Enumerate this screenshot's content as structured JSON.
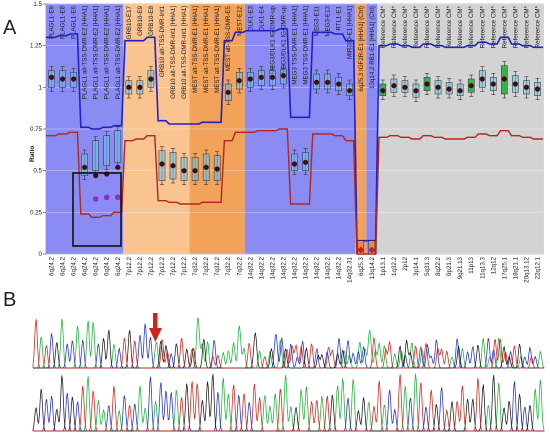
{
  "panel_a_label": "A",
  "panel_b_label": "B",
  "chart_data": {
    "type": "scatter",
    "ylabel": "Ratio",
    "ylim": [
      0,
      1.5
    ],
    "yticks": [
      0,
      0.25,
      0.5,
      0.75,
      1,
      1.25,
      1.5
    ],
    "ytick_labels": [
      "0",
      "0.25",
      "0.5",
      "0.75",
      "1",
      "1.25",
      "1.5"
    ],
    "grid": true,
    "region_colors": {
      "blue": "#8b8cf3",
      "peach": "#f9c490",
      "orange": "#f3a259",
      "gray": "#d3d3d3",
      "green_box": "#2fb24c",
      "box_cyan": "#6ec5ec",
      "upper_line": "#1f22c4",
      "lower_line": "#b3261e",
      "point": "#3d0f0f",
      "loss_marker": "#c8201a",
      "highlight_point": "#8a2fc8"
    },
    "regions": [
      {
        "color": "blue",
        "from": 0,
        "to": 6
      },
      {
        "color": "peach",
        "from": 7,
        "to": 12
      },
      {
        "color": "orange",
        "from": 13,
        "to": 17
      },
      {
        "color": "blue",
        "from": 18,
        "to": 27
      },
      {
        "color": "orange",
        "from": 28,
        "to": 28
      },
      {
        "color": "blue",
        "from": 29,
        "to": 29
      },
      {
        "color": "gray",
        "from": 30,
        "to": 44
      }
    ],
    "probes": [
      "PLAGL1-E9",
      "PLAGL1-E8",
      "PLAGL1-E6",
      "PLAGL1 alt-TSS-DMR-E2 [HHA1]",
      "PLAGL1 alt-TSS-DMR-E2 [HHA1]",
      "PLAGL1 alt-TSS-DMR-E2 [HHA1]",
      "PLAGL1 alt-TSS-DMR-E2 [HHA1]",
      "GRB10-E17",
      "GRB10-E9",
      "GRB10-E8",
      "GRB10 alt-TSS-DMR-Int1",
      "GRB10 alt-TSS-DMR-Int1 [HHA1]",
      "GRB10 alt-TSS-DMR-Int1 [HHA1]",
      "MEST alt-TSS-DMR-E1 [HHA1]",
      "MEST alt-TSS-DMR-E1 [HHA1]",
      "MEST alt-TSS-DMR-E1 [HHA1]",
      "MEST alt-TSS-DMR-E5",
      "MEST-E12",
      "DLK1-E3",
      "DLK1-E4",
      "MEG3/DLK1 IG-DMR-up",
      "MEG3/DLK1 IG-DMR-up",
      "MEG3 TSS-DMR-E1 [HHA1]",
      "MEG3 TSS-DMR-E1 [HHA1]",
      "MEG3-E11",
      "MEG3-E13",
      "RTL1-E1",
      "MIR380-E1 [HHA1]",
      "6q25.3 IGF2R-E1 [HHA1] (Ctrl)",
      "13q14.2 RB1-E1 [HHA1] (Ctrl)",
      "Reference CM*",
      "Reference CM*",
      "Reference CM*",
      "Reference CM*",
      "Reference CM*",
      "Reference CM*",
      "Reference CM*",
      "Reference CM*",
      "Reference CM*",
      "Reference CM*",
      "Reference CM*",
      "Reference CM*",
      "Reference CM*",
      "Reference CM*",
      "Reference CM*"
    ],
    "categories": [
      "6q24.2",
      "6q24.2",
      "6q24.2",
      "6q24.2",
      "6q24.2",
      "6q24.2",
      "6q24.2",
      "7p12.2",
      "7p12.2",
      "7p12.2",
      "7p12.2",
      "7p12.2",
      "7p12.2",
      "7q32.2",
      "7q32.2",
      "7q32.2",
      "7q32.2",
      "7q32.2",
      "14q32.2",
      "14q32.2",
      "14q32.2",
      "14q32.2",
      "14q32.2",
      "14q32.2",
      "14q32.2",
      "14q32.2",
      "14q32.2",
      "14q32.31",
      "6q25.3",
      "13q14.2",
      "1p13.1",
      "1q32.2",
      "2p12",
      "3p14.1",
      "5q31.3",
      "8q22.2",
      "9p21.3",
      "9q21.13",
      "11p13",
      "11q13.3",
      "12q12",
      "17q25.1",
      "18q21.1",
      "20q13.12",
      "22q12.1"
    ],
    "values": [
      1.06,
      1.05,
      1.05,
      0.52,
      0.47,
      0.48,
      0.52,
      1.0,
      1.0,
      1.05,
      0.54,
      0.53,
      0.5,
      0.5,
      0.52,
      0.51,
      0.97,
      1.04,
      1.05,
      1.06,
      1.06,
      1.07,
      0.54,
      0.55,
      1.03,
      1.03,
      1.02,
      0.98,
      0.0,
      0.0,
      0.98,
      1.01,
      1.0,
      0.98,
      1.02,
      1.0,
      0.99,
      0.98,
      1.01,
      1.05,
      1.02,
      1.05,
      1.02,
      1.0,
      0.99
    ],
    "box_high": [
      1.1,
      1.1,
      1.09,
      0.6,
      0.68,
      0.71,
      0.74,
      1.04,
      1.04,
      1.1,
      0.62,
      0.61,
      0.58,
      0.58,
      0.6,
      0.59,
      1.02,
      1.09,
      1.09,
      1.1,
      1.1,
      1.11,
      0.6,
      0.61,
      1.08,
      1.08,
      1.06,
      1.02,
      0.06,
      0.06,
      1.02,
      1.05,
      1.04,
      1.02,
      1.06,
      1.04,
      1.03,
      1.02,
      1.05,
      1.1,
      1.06,
      1.13,
      1.07,
      1.04,
      1.03
    ],
    "box_low": [
      1.0,
      1.0,
      1.0,
      0.47,
      0.5,
      0.53,
      0.55,
      0.96,
      0.96,
      1.0,
      0.44,
      0.45,
      0.44,
      0.44,
      0.44,
      0.44,
      0.92,
      0.99,
      1.0,
      1.01,
      1.01,
      1.02,
      0.5,
      0.5,
      0.99,
      0.99,
      0.98,
      0.95,
      0.0,
      0.0,
      0.95,
      0.97,
      0.97,
      0.94,
      0.98,
      0.96,
      0.96,
      0.95,
      0.97,
      1.0,
      0.98,
      0.96,
      0.97,
      0.96,
      0.95
    ],
    "highlighted": [
      4,
      5,
      6
    ],
    "highlight_values": [
      0.33,
      0.34,
      0.34
    ],
    "upper_threshold": [
      1.3,
      1.31,
      1.32,
      0.76,
      0.75,
      0.76,
      0.77,
      1.28,
      1.28,
      1.3,
      0.8,
      0.78,
      0.78,
      0.78,
      0.79,
      0.79,
      1.28,
      1.33,
      1.34,
      1.34,
      1.34,
      1.35,
      0.82,
      0.82,
      1.33,
      1.33,
      1.32,
      1.28,
      0.08,
      0.08,
      1.25,
      1.26,
      1.25,
      1.24,
      1.26,
      1.25,
      1.24,
      1.24,
      1.25,
      1.27,
      1.26,
      1.3,
      1.26,
      1.25,
      1.24
    ],
    "lower_threshold": [
      0.71,
      0.72,
      0.73,
      0.24,
      0.22,
      0.23,
      0.25,
      0.68,
      0.69,
      0.71,
      0.32,
      0.31,
      0.3,
      0.3,
      0.31,
      0.31,
      0.68,
      0.73,
      0.73,
      0.74,
      0.74,
      0.75,
      0.3,
      0.3,
      0.72,
      0.72,
      0.71,
      0.68,
      0.0,
      0.0,
      0.7,
      0.71,
      0.7,
      0.69,
      0.71,
      0.7,
      0.69,
      0.69,
      0.7,
      0.72,
      0.71,
      0.74,
      0.71,
      0.7,
      0.69
    ],
    "green_boxes": [
      30,
      34,
      38,
      41
    ],
    "loss_markers": [
      28,
      29
    ]
  },
  "sequence_traces": {
    "colors": {
      "A": "#1eb13a",
      "C": "#2231c8",
      "G": "#1a1a1a",
      "T": "#d0241b"
    },
    "arrow_color": "#d0241b"
  }
}
